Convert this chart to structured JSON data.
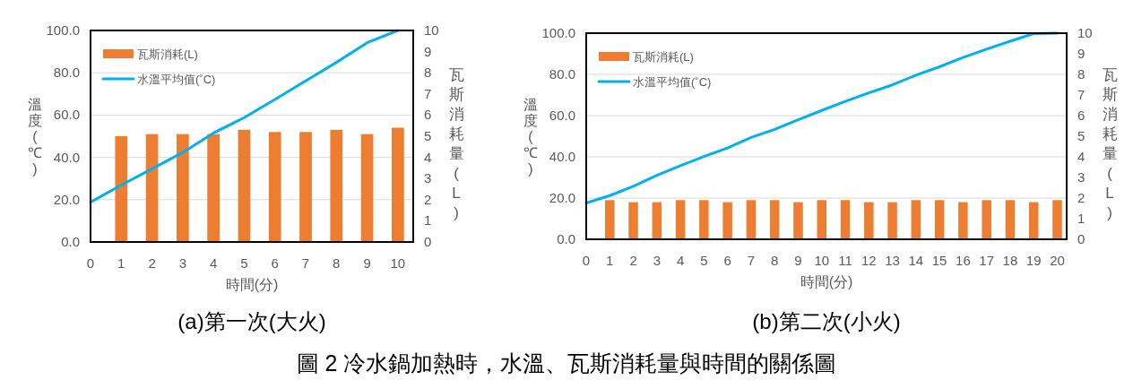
{
  "chart_data": [
    {
      "type": "bar",
      "title": "(a)第一次(大火)",
      "xlabel": "時間(分)",
      "ylabel": "溫度(℃)",
      "y2label": "瓦斯消耗量(L)",
      "xlim": [
        0,
        10.5
      ],
      "xticks": [
        0,
        1,
        2,
        3,
        4,
        5,
        6,
        7,
        8,
        9,
        10
      ],
      "ylim": [
        0,
        100
      ],
      "yticks": [
        {
          "value": 0,
          "label": "0.0"
        },
        {
          "value": 20,
          "label": "20.0"
        },
        {
          "value": 40,
          "label": "40.0"
        },
        {
          "value": 60,
          "label": "60.0"
        },
        {
          "value": 80,
          "label": "80.0"
        },
        {
          "value": 100,
          "label": "100.0"
        }
      ],
      "y2lim": [
        0,
        10
      ],
      "y2ticks": [
        0,
        1,
        2,
        3,
        4,
        5,
        6,
        7,
        8,
        9,
        10
      ],
      "grid": "y",
      "legend": "top left",
      "annotations": [
        "圖 2  冷水鍋加熱時，水溫、瓦斯消耗量與時間的關係圖"
      ],
      "series": [
        {
          "name": "瓦斯消耗(L)",
          "axis": "y2",
          "color": "#ed7d31",
          "x": [
            1,
            2,
            3,
            4,
            5,
            6,
            7,
            8,
            9,
            10
          ],
          "values": [
            5.0,
            5.1,
            5.1,
            5.1,
            5.3,
            5.2,
            5.2,
            5.3,
            5.1,
            5.4
          ]
        },
        {
          "name": "水溫平均值(˚C)",
          "type": "line",
          "color": "#00b0f0",
          "x": [
            0,
            1,
            2,
            3,
            4,
            5,
            6,
            7,
            8,
            9,
            10
          ],
          "values": [
            18.8,
            26.9,
            34.6,
            42.3,
            51.5,
            58.8,
            67.4,
            76.2,
            84.9,
            94.2,
            100
          ]
        }
      ]
    },
    {
      "type": "bar",
      "title": "(b)第二次(小火)",
      "xlabel": "時間(分)",
      "ylabel": "溫度(℃)",
      "y2label": "瓦斯消耗量(L)",
      "xlim": [
        0,
        20.4
      ],
      "xticks": [
        0,
        1,
        2,
        3,
        4,
        5,
        6,
        7,
        8,
        9,
        10,
        11,
        12,
        13,
        14,
        15,
        16,
        17,
        18,
        19,
        20
      ],
      "ylim": [
        0,
        100
      ],
      "yticks": [
        {
          "value": 0,
          "label": "0.0"
        },
        {
          "value": 20,
          "label": "20.0"
        },
        {
          "value": 40,
          "label": "40.0"
        },
        {
          "value": 60,
          "label": "60.0"
        },
        {
          "value": 80,
          "label": "80.0"
        },
        {
          "value": 100,
          "label": "100.0"
        }
      ],
      "y2lim": [
        0,
        10
      ],
      "y2ticks": [
        0,
        1,
        2,
        3,
        4,
        5,
        6,
        7,
        8,
        9,
        10
      ],
      "grid": "y",
      "legend": "top left",
      "series": [
        {
          "name": "瓦斯消耗(L)",
          "axis": "y2",
          "color": "#ed7d31",
          "x": [
            1,
            2,
            3,
            4,
            5,
            6,
            7,
            8,
            9,
            10,
            11,
            12,
            13,
            14,
            15,
            16,
            17,
            18,
            19,
            20
          ],
          "values": [
            1.9,
            1.8,
            1.8,
            1.9,
            1.9,
            1.8,
            1.9,
            1.9,
            1.8,
            1.9,
            1.9,
            1.8,
            1.8,
            1.9,
            1.9,
            1.8,
            1.9,
            1.9,
            1.8,
            1.9
          ]
        },
        {
          "name": "水溫平均值(˚C)",
          "type": "line",
          "color": "#00b0f0",
          "x": [
            0,
            1,
            2,
            3,
            4,
            5,
            6,
            7,
            8,
            9,
            10,
            11,
            12,
            13,
            14,
            15,
            16,
            17,
            18,
            19,
            20
          ],
          "values": [
            17.6,
            21.2,
            25.7,
            31.0,
            35.7,
            40.2,
            44.3,
            49.4,
            53.3,
            58.0,
            62.5,
            66.9,
            71.0,
            74.9,
            79.6,
            83.7,
            88.2,
            92.2,
            96.1,
            99.8,
            100
          ]
        }
      ]
    }
  ]
}
